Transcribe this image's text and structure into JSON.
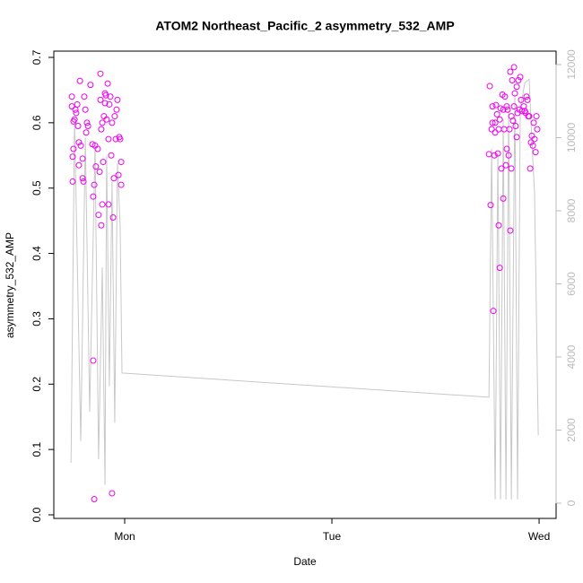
{
  "chart_data": {
    "type": "scatter",
    "title": "ATOM2 Northeast_Pacific_2 asymmetry_532_AMP",
    "x_label": "Date",
    "y_label": "asymmetry_532_AMP",
    "xlim": [
      0.658,
      3.082
    ],
    "ylim": [
      -0.0055,
      0.7096
    ],
    "y2lim": [
      -417,
      12368
    ],
    "xticks": [
      {
        "value": 1,
        "label": "Mon"
      },
      {
        "value": 2,
        "label": "Tue"
      },
      {
        "value": 3,
        "label": "Wed"
      }
    ],
    "yticks": [
      {
        "value": 0,
        "label": "0.0"
      },
      0.1,
      0.2,
      0.3,
      0.4,
      0.5,
      0.6,
      0.7
    ],
    "y2ticks": [
      0,
      2000,
      4000,
      6000,
      8000,
      10000,
      12000
    ],
    "y2_color": "#bbbbbb",
    "series": [
      {
        "type": "line",
        "axis": "y2",
        "color": "#c8c8c8",
        "x": [
          0.741,
          0.758,
          0.788,
          0.81,
          0.831,
          0.857,
          0.874,
          0.892,
          0.905,
          0.913,
          0.926,
          0.939,
          0.952,
          0.965,
          0.978,
          0.987,
          2.758,
          2.771,
          2.788,
          2.801,
          2.814,
          2.827,
          2.84,
          2.853,
          2.866,
          2.883,
          2.896,
          2.909,
          2.931,
          2.952,
          2.965,
          2.978,
          2.996
        ],
        "values": [
          1100,
          10500,
          1700,
          10000,
          2500,
          9800,
          1200,
          6450,
          500,
          9500,
          3200,
          8800,
          2200,
          9300,
          7600,
          3560,
          2900,
          9700,
          100,
          9600,
          100,
          10500,
          100,
          10800,
          100,
          11200,
          100,
          10800,
          11500,
          11600,
          9900,
          8500,
          1860
        ]
      },
      {
        "type": "scatter",
        "color": "#ee00ee",
        "x": [
          0.745,
          0.745,
          0.749,
          0.749,
          0.753,
          0.753,
          0.758,
          0.762,
          0.766,
          0.771,
          0.775,
          0.779,
          0.779,
          0.784,
          0.788,
          0.797,
          0.797,
          0.801,
          0.805,
          0.81,
          0.814,
          0.818,
          0.823,
          0.835,
          0.844,
          0.848,
          0.848,
          0.853,
          0.853,
          0.857,
          0.861,
          0.87,
          0.874,
          0.879,
          0.883,
          0.883,
          0.887,
          0.887,
          0.892,
          0.892,
          0.896,
          0.9,
          0.905,
          0.905,
          0.909,
          0.913,
          0.918,
          0.922,
          0.922,
          0.926,
          0.931,
          0.935,
          0.939,
          0.939,
          0.944,
          0.948,
          0.952,
          0.957,
          0.961,
          0.965,
          0.97,
          0.974,
          0.978,
          0.983,
          0.983,
          2.758,
          2.762,
          2.766,
          2.771,
          2.775,
          2.775,
          2.779,
          2.784,
          2.788,
          2.788,
          2.792,
          2.797,
          2.801,
          2.805,
          2.805,
          2.81,
          2.81,
          2.814,
          2.818,
          2.823,
          2.827,
          2.827,
          2.831,
          2.835,
          2.84,
          2.844,
          2.844,
          2.848,
          2.853,
          2.857,
          2.861,
          2.861,
          2.866,
          2.866,
          2.87,
          2.874,
          2.879,
          2.879,
          2.883,
          2.887,
          2.892,
          2.892,
          2.896,
          2.9,
          2.905,
          2.909,
          2.913,
          2.918,
          2.926,
          2.931,
          2.935,
          2.939,
          2.944,
          2.948,
          2.952,
          2.957,
          2.961,
          2.965,
          2.97,
          2.974,
          2.978,
          2.983,
          2.987,
          2.991
        ],
        "values": [
          0.64,
          0.625,
          0.548,
          0.51,
          0.602,
          0.56,
          0.605,
          0.62,
          0.615,
          0.628,
          0.595,
          0.57,
          0.535,
          0.664,
          0.565,
          0.545,
          0.515,
          0.51,
          0.64,
          0.62,
          0.585,
          0.6,
          0.595,
          0.658,
          0.567,
          0.487,
          0.236,
          0.024,
          0.505,
          0.565,
          0.533,
          0.56,
          0.459,
          0.525,
          0.675,
          0.635,
          0.59,
          0.443,
          0.475,
          0.6,
          0.54,
          0.61,
          0.645,
          0.63,
          0.642,
          0.605,
          0.66,
          0.475,
          0.575,
          0.628,
          0.64,
          0.55,
          0.033,
          0.6,
          0.455,
          0.515,
          0.61,
          0.575,
          0.62,
          0.635,
          0.52,
          0.578,
          0.575,
          0.54,
          0.505,
          0.552,
          0.656,
          0.474,
          0.59,
          0.6,
          0.625,
          0.312,
          0.55,
          0.6,
          0.585,
          0.627,
          0.613,
          0.553,
          0.443,
          0.59,
          0.378,
          0.605,
          0.622,
          0.53,
          0.643,
          0.484,
          0.62,
          0.59,
          0.64,
          0.535,
          0.625,
          0.56,
          0.62,
          0.55,
          0.59,
          0.435,
          0.678,
          0.53,
          0.61,
          0.665,
          0.603,
          0.685,
          0.625,
          0.645,
          0.595,
          0.655,
          0.578,
          0.615,
          0.665,
          0.62,
          0.67,
          0.635,
          0.618,
          0.625,
          0.618,
          0.615,
          0.64,
          0.635,
          0.61,
          0.61,
          0.53,
          0.57,
          0.58,
          0.565,
          0.6,
          0.575,
          0.555,
          0.61,
          0.59
        ]
      }
    ]
  }
}
